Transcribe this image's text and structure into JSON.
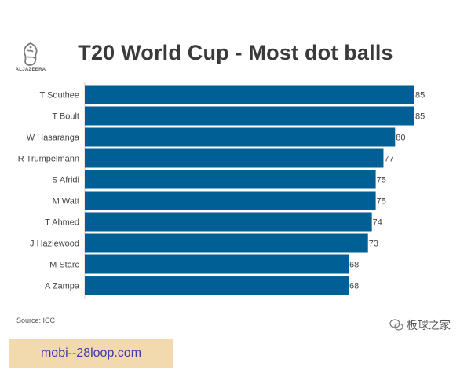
{
  "logo": {
    "text": "ALJAZEERA"
  },
  "footer": {
    "source": "Source: ICC",
    "wechat": "板球之家",
    "banner": "mobi--28loop.com"
  },
  "colors": {
    "bar": "#005f94",
    "text": "#444444",
    "title": "#3a3a3a"
  },
  "chart_data": {
    "type": "bar",
    "orientation": "horizontal",
    "title": "T20 World Cup - Most dot balls",
    "xlabel": "",
    "ylabel": "",
    "xlim": [
      0,
      85
    ],
    "grid": false,
    "categories": [
      "T Southee",
      "T Boult",
      "W Hasaranga",
      "R Trumpelmann",
      "S Afridi",
      "M Watt",
      "T Ahmed",
      "J Hazlewood",
      "M Starc",
      "A Zampa"
    ],
    "values": [
      85,
      85,
      80,
      77,
      75,
      75,
      74,
      73,
      68,
      68
    ]
  }
}
